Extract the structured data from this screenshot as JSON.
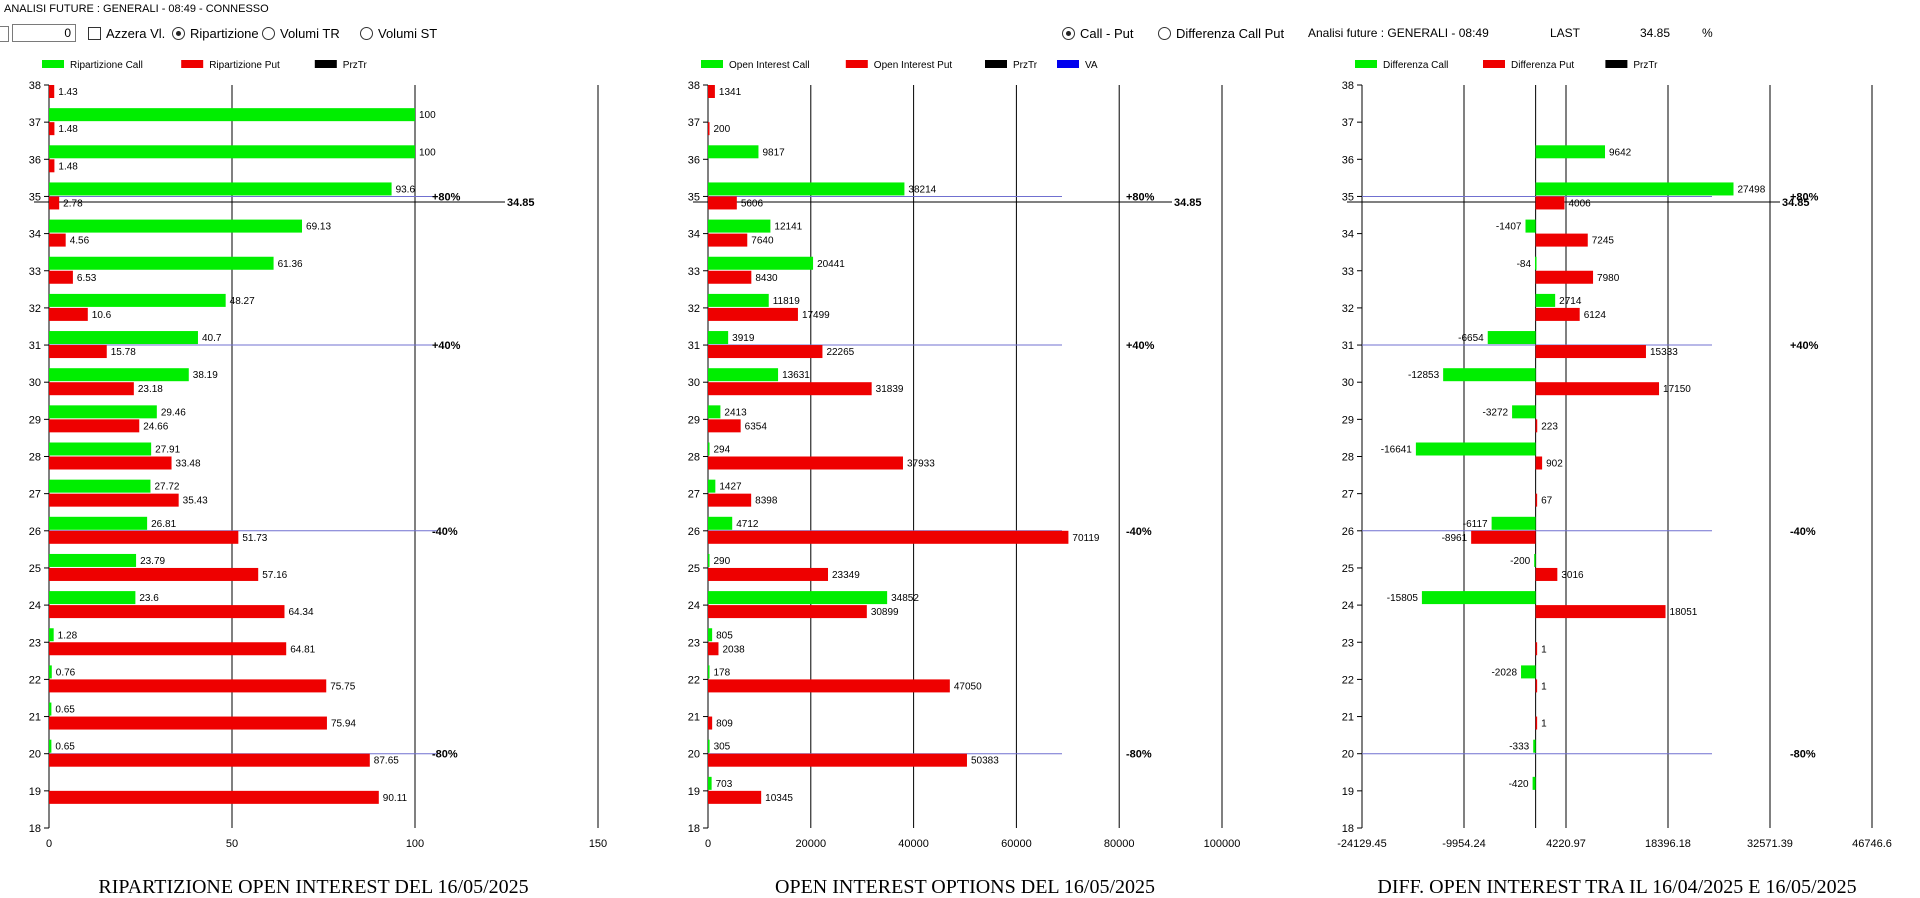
{
  "window_title": "ANALISI FUTURE : GENERALI - 08:49 - CONNESSO",
  "controls": {
    "spin_value": "0",
    "azzera_label": "Azzera Vl.",
    "radio_ripartizione": "Ripartizione",
    "radio_volumi_tr": "Volumi TR",
    "radio_volumi_st": "Volumi ST",
    "radio_call_put": "Call - Put",
    "radio_diff_call_put": "Differenza Call Put"
  },
  "header_right": {
    "label": "Analisi future : GENERALI - 08:49",
    "last_label": "LAST",
    "last_value": "34.85",
    "pct": "%"
  },
  "colors": {
    "call": "#00ee00",
    "put": "#ee0000",
    "prztr": "#000000",
    "va": "#0000ee",
    "level_line": "#7070d0"
  },
  "chart_data": [
    {
      "type": "bar",
      "orientation": "horizontal",
      "title": "RIPARTIZIONE OPEN INTEREST DEL 16/05/2025",
      "legend": [
        "Ripartizione Call",
        "Ripartizione Put",
        "PrzTr"
      ],
      "legend_placement": "top-left",
      "x_ticks": [
        "0",
        "50",
        "100",
        "150"
      ],
      "xlim": [
        0,
        150
      ],
      "strikes": [
        38,
        37,
        36,
        35,
        34,
        33,
        32,
        31,
        30,
        29,
        28,
        27,
        26,
        25,
        24,
        23,
        22,
        21,
        20,
        19,
        18
      ],
      "series": [
        {
          "name": "Ripartizione Call",
          "values": [
            null,
            100,
            100,
            93.6,
            69.13,
            61.36,
            48.27,
            40.7,
            38.19,
            29.46,
            27.91,
            27.72,
            26.81,
            23.79,
            23.6,
            1.28,
            0.76,
            0.65,
            0.65,
            null,
            null
          ],
          "labels": [
            "",
            "100",
            "100",
            "93.6",
            "69.13",
            "61.36",
            "48.27",
            "40.7",
            "38.19",
            "29.46",
            "27.91",
            "27.72",
            "26.81",
            "23.79",
            "23.6",
            "1.28",
            "0.76",
            "0.65",
            "0.65",
            "",
            ""
          ]
        },
        {
          "name": "Ripartizione Put",
          "values": [
            1.43,
            1.48,
            1.48,
            2.78,
            4.56,
            6.53,
            10.6,
            15.78,
            23.18,
            24.66,
            33.48,
            35.43,
            51.73,
            57.16,
            64.34,
            64.81,
            75.75,
            75.94,
            87.65,
            90.11,
            null
          ],
          "labels": [
            "1.43",
            "1.48",
            "1.48",
            "2.78",
            "4.56",
            "6.53",
            "10.6",
            "15.78",
            "23.18",
            "24.66",
            "33.48",
            "35.43",
            "51.73",
            "57.16",
            "64.34",
            "64.81",
            "75.75",
            "75.94",
            "87.65",
            "90.11",
            ""
          ]
        }
      ],
      "level_lines": [
        {
          "strike": 35,
          "label": "+80%"
        },
        {
          "strike": 31,
          "label": "+40%"
        },
        {
          "strike": 26,
          "label": "-40%"
        },
        {
          "strike": 20,
          "label": "-80%"
        }
      ],
      "price_line": {
        "value": 34.85,
        "label": "34.85"
      }
    },
    {
      "type": "bar",
      "orientation": "horizontal",
      "title": "OPEN INTEREST OPTIONS DEL 16/05/2025",
      "legend": [
        "Open Interest Call",
        "Open Interest Put",
        "PrzTr",
        "VA"
      ],
      "legend_placement": "top-left",
      "x_ticks": [
        "0",
        "20000",
        "40000",
        "60000",
        "80000",
        "100000"
      ],
      "xlim": [
        0,
        100000
      ],
      "strikes": [
        38,
        37,
        36,
        35,
        34,
        33,
        32,
        31,
        30,
        29,
        28,
        27,
        26,
        25,
        24,
        23,
        22,
        21,
        20,
        19,
        18
      ],
      "series": [
        {
          "name": "Open Interest Call",
          "values": [
            null,
            null,
            9817,
            38214,
            12141,
            20441,
            11819,
            3919,
            13631,
            2413,
            294,
            1427,
            4712,
            290,
            34852,
            805,
            178,
            null,
            305,
            703,
            null
          ],
          "labels": [
            "",
            "",
            "9817",
            "38214",
            "12141",
            "20441",
            "11819",
            "3919",
            "13631",
            "2413",
            "294",
            "1427",
            "4712",
            "290",
            "34852",
            "805",
            "178",
            "",
            "305",
            "703",
            ""
          ]
        },
        {
          "name": "Open Interest Put",
          "values": [
            1341,
            200,
            null,
            5606,
            7640,
            8430,
            17499,
            22265,
            31839,
            6354,
            37933,
            8398,
            70119,
            23349,
            30899,
            2038,
            47050,
            809,
            50383,
            10345,
            null
          ],
          "labels": [
            "1341",
            "200",
            "",
            "5606",
            "7640",
            "8430",
            "17499",
            "22265",
            "31839",
            "6354",
            "37933",
            "8398",
            "70119",
            "23349",
            "30899",
            "2038",
            "47050",
            "809",
            "50383",
            "10345",
            ""
          ]
        }
      ],
      "level_lines": [
        {
          "strike": 35,
          "label": "+80%"
        },
        {
          "strike": 31,
          "label": "+40%"
        },
        {
          "strike": 26,
          "label": "-40%"
        },
        {
          "strike": 20,
          "label": "-80%"
        }
      ],
      "price_line": {
        "value": 34.85,
        "label": "34.85"
      }
    },
    {
      "type": "bar",
      "orientation": "horizontal",
      "title": "DIFF. OPEN INTEREST TRA IL 16/04/2025 E 16/05/2025",
      "legend": [
        "Differenza Call",
        "Differenza Put",
        "PrzTr"
      ],
      "legend_placement": "top-left",
      "x_ticks": [
        "-24129.45",
        "-9954.24",
        "4220.97",
        "18396.18",
        "32571.39",
        "46746.6"
      ],
      "xlim": [
        -24129.45,
        46746.6
      ],
      "strikes": [
        38,
        37,
        36,
        35,
        34,
        33,
        32,
        31,
        30,
        29,
        28,
        27,
        26,
        25,
        24,
        23,
        22,
        21,
        20,
        19,
        18
      ],
      "series": [
        {
          "name": "Differenza Call",
          "values": [
            null,
            null,
            9642,
            27498,
            -1407,
            -84,
            2714,
            -6654,
            -12853,
            -3272,
            -16641,
            null,
            -6117,
            -200,
            -15805,
            null,
            -2028,
            null,
            -333,
            -420,
            null
          ],
          "labels": [
            "",
            "",
            "9642",
            "27498",
            "-1407",
            "-84",
            "2714",
            "-6654",
            "-12853",
            "-3272",
            "-16641",
            "",
            "-6117",
            "-200",
            "-15805",
            "",
            "-2028",
            "",
            "-333",
            "-420",
            ""
          ]
        },
        {
          "name": "Differenza Put",
          "values": [
            null,
            null,
            null,
            4006,
            7245,
            7980,
            6124,
            15333,
            17150,
            223,
            902,
            67,
            -8961,
            3016,
            18051,
            1,
            1,
            1,
            null,
            null,
            null
          ],
          "labels": [
            "",
            "",
            "",
            "4006",
            "7245",
            "7980",
            "6124",
            "15333",
            "17150",
            "223",
            "902",
            "67",
            "-8961",
            "3016",
            "18051",
            "1",
            "1",
            "1",
            "",
            "",
            ""
          ]
        }
      ],
      "level_lines": [
        {
          "strike": 35,
          "label": "+80%"
        },
        {
          "strike": 31,
          "label": "+40%"
        },
        {
          "strike": 26,
          "label": "-40%"
        },
        {
          "strike": 20,
          "label": "-80%"
        }
      ],
      "price_line": {
        "value": 34.85,
        "label": "34.85"
      }
    }
  ]
}
